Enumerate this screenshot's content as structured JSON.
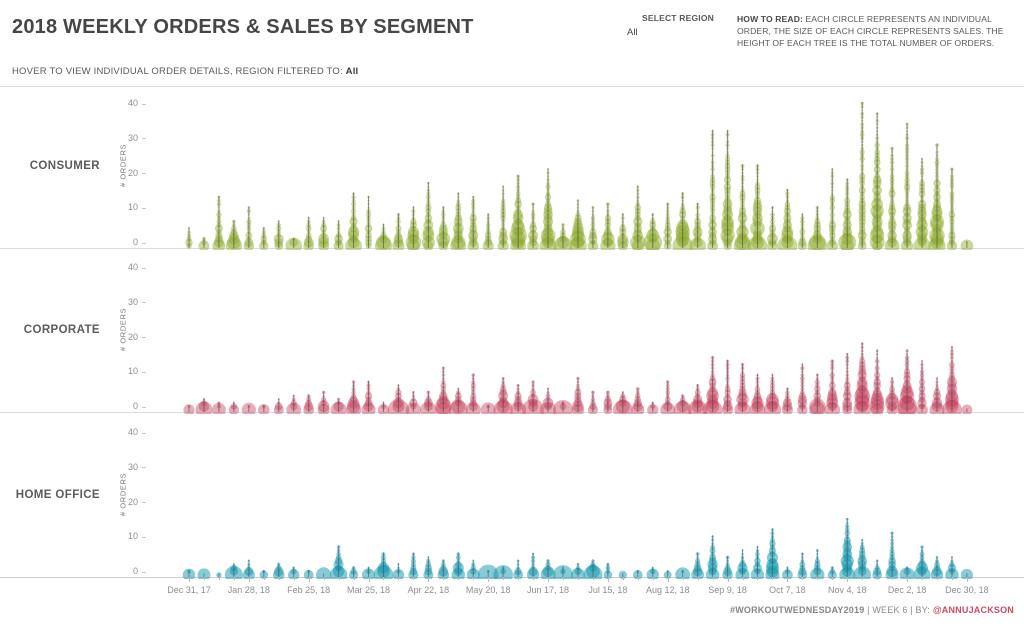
{
  "header": {
    "title": "2018 WEEKLY ORDERS & SALES BY SEGMENT",
    "subtitle_prefix": "HOVER TO VIEW INDIVIDUAL ORDER DETAILS, REGION FILTERED TO: ",
    "subtitle_value": "All"
  },
  "region_select": {
    "label": "SELECT REGION",
    "value": "All"
  },
  "how_to_read": {
    "label": "HOW TO READ:",
    "text": " EACH CIRCLE REPRESENTS AN INDIVIDUAL ORDER, THE SIZE OF EACH CIRCLE REPRESENTS SALES.  THE HEIGHT OF EACH TREE IS THE TOTAL NUMBER OF ORDERS."
  },
  "footer": {
    "hashtag": "#WORKOUTWEDNESDAY2019",
    "middle": " | WEEK 6 | BY: ",
    "author": "@ANNUJACKSON"
  },
  "chart_data": {
    "type": "scatter",
    "variant": "stacked-circle-trees",
    "title": "2018 WEEKLY ORDERS & SALES BY SEGMENT",
    "xlabel": "",
    "ylabel": "# ORDERS",
    "y_ticks": [
      0,
      10,
      20,
      30,
      40
    ],
    "ylim": [
      0,
      43
    ],
    "weeks": 53,
    "x_tick_every": 4,
    "x_tick_labels": [
      "Dec 31, 17",
      "Jan 28, 18",
      "Feb 25, 18",
      "Mar 25, 18",
      "Apr 22, 18",
      "May 20, 18",
      "Jun 17, 18",
      "Jul 15, 18",
      "Aug 12, 18",
      "Sep 9, 18",
      "Oct 7, 18",
      "Nov 4, 18",
      "Dec 2, 18",
      "Dec 30, 18"
    ],
    "legend_position": "row-labels-left",
    "grid": false,
    "series": [
      {
        "name": "CONSUMER",
        "color": "#8aa829",
        "stem_color": "#4a4a4a",
        "fill_opacity": 0.45,
        "values": [
          6,
          3,
          15,
          8,
          12,
          6,
          8,
          3,
          9,
          9,
          8,
          16,
          15,
          7,
          10,
          12,
          19,
          12,
          16,
          15,
          10,
          18,
          21,
          13,
          23,
          7,
          14,
          12,
          13,
          10,
          18,
          10,
          13,
          16,
          13,
          34,
          34,
          24,
          24,
          12,
          17,
          10,
          12,
          23,
          20,
          42,
          39,
          29,
          36,
          26,
          30,
          23,
          2
        ]
      },
      {
        "name": "CORPORATE",
        "color": "#c43b57",
        "stem_color": "#4a4a4a",
        "fill_opacity": 0.42,
        "values": [
          2,
          4,
          3,
          3,
          2,
          2,
          4,
          5,
          5,
          6,
          4,
          9,
          9,
          3,
          8,
          6,
          6,
          13,
          7,
          11,
          2,
          10,
          8,
          9,
          7,
          3,
          10,
          6,
          6,
          6,
          7,
          3,
          9,
          5,
          8,
          16,
          15,
          14,
          11,
          11,
          7,
          14,
          11,
          15,
          17,
          20,
          18,
          10,
          18,
          15,
          10,
          19,
          1
        ]
      },
      {
        "name": "HOME OFFICE",
        "color": "#1295ab",
        "stem_color": "#3f5560",
        "fill_opacity": 0.5,
        "values": [
          2,
          1,
          1,
          4,
          5,
          2,
          4,
          3,
          2,
          1,
          9,
          3,
          3,
          7,
          4,
          7,
          6,
          5,
          7,
          5,
          2,
          3,
          5,
          7,
          5,
          3,
          4,
          5,
          4,
          1,
          2,
          3,
          2,
          2,
          7,
          12,
          6,
          8,
          9,
          14,
          3,
          7,
          8,
          3,
          17,
          11,
          5,
          13,
          3,
          9,
          6,
          6,
          1
        ]
      }
    ]
  }
}
